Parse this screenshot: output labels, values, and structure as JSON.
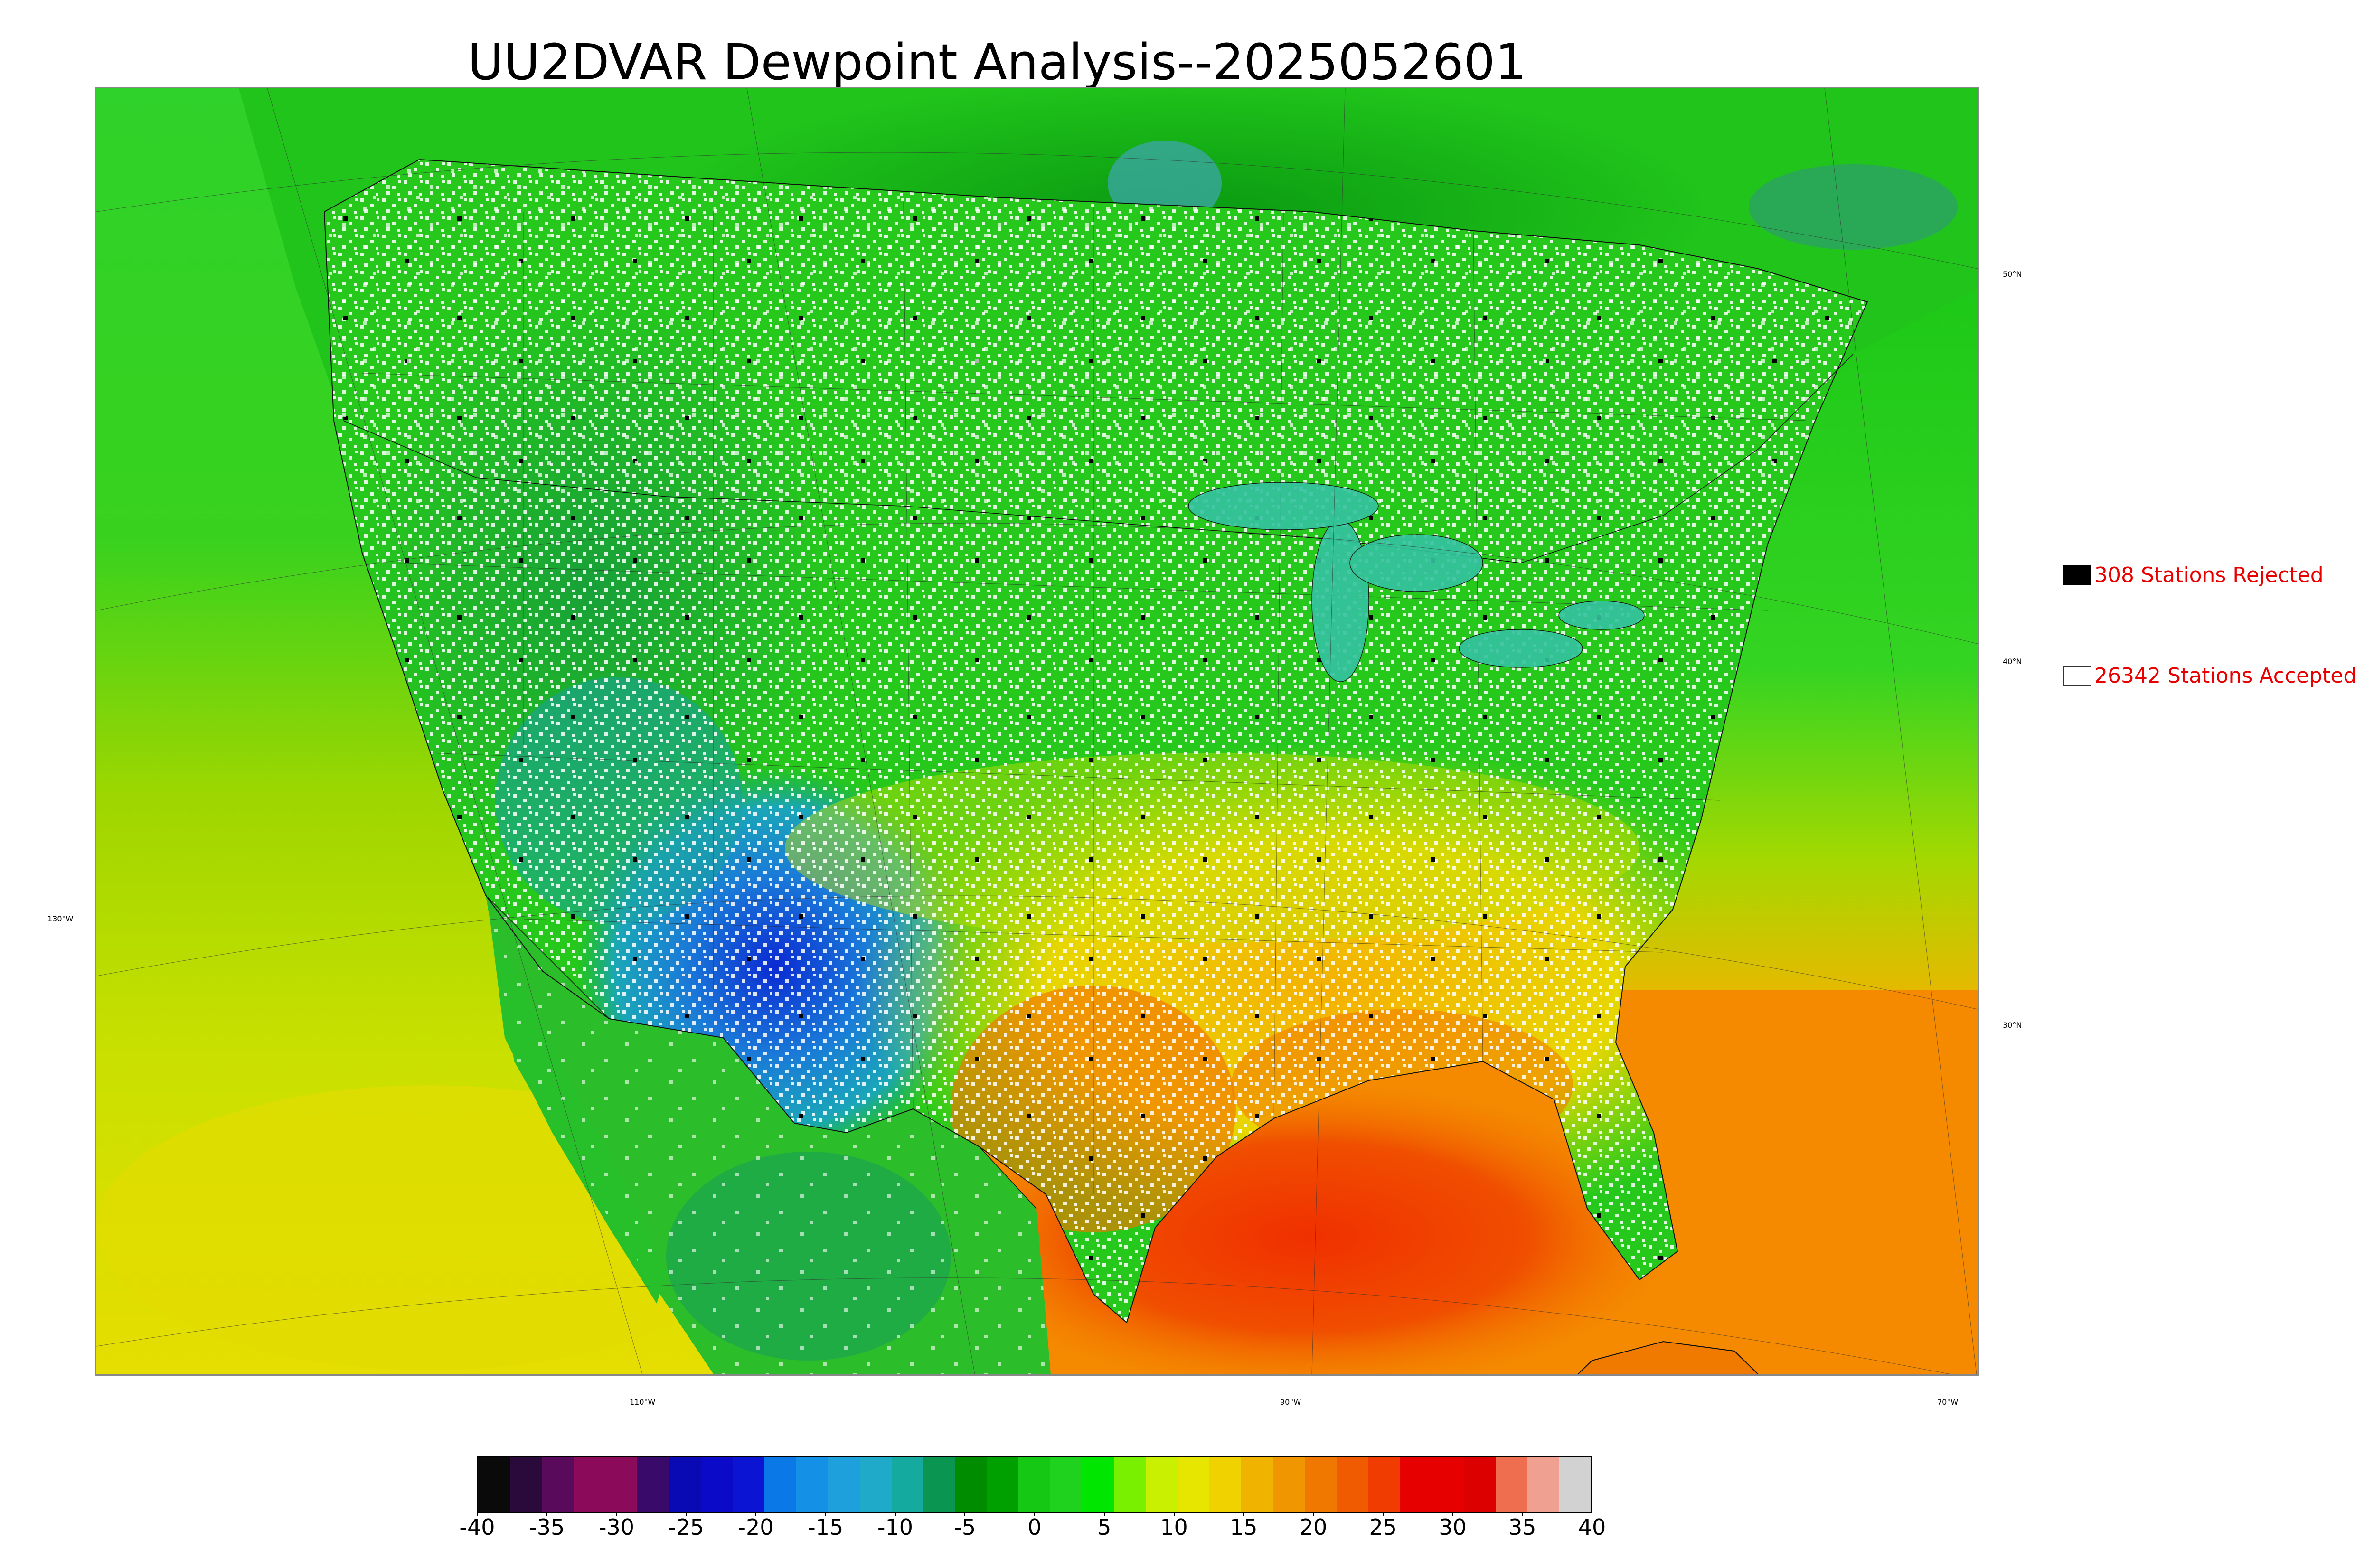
{
  "title": "UU2DVAR Dewpoint Analysis--2025052601",
  "legend": {
    "rejected": {
      "count_label": "308 Stations Rejected",
      "swatch_color": "#000000"
    },
    "accepted": {
      "count_label": "26342 Stations Accepted",
      "swatch_color": "#ffffff"
    }
  },
  "graticule": {
    "latitudes": [
      "50°N",
      "40°N",
      "30°N"
    ],
    "longitudes": [
      "130°W",
      "110°W",
      "90°W",
      "70°W"
    ]
  },
  "colorbar": {
    "ticks": [
      "-40",
      "-35",
      "-30",
      "-25",
      "-20",
      "-15",
      "-10",
      "-5",
      "0",
      "5",
      "10",
      "15",
      "20",
      "25",
      "30",
      "35",
      "40"
    ],
    "colors": [
      "#0a0a0a",
      "#2a0a3a",
      "#5a0a5a",
      "#8c0a5a",
      "#8c0a5a",
      "#3a0a6a",
      "#0a0ab4",
      "#0a0ac8",
      "#0a14d2",
      "#0a78e6",
      "#1490e6",
      "#1ea0dc",
      "#1eaac8",
      "#14aaa0",
      "#0a9650",
      "#008c00",
      "#00a000",
      "#14c814",
      "#1ed21e",
      "#00e600",
      "#78f000",
      "#c8f000",
      "#e6e600",
      "#f0d200",
      "#f0b400",
      "#f09600",
      "#f07800",
      "#f05a00",
      "#f03c00",
      "#e60000",
      "#e60000",
      "#dc0000",
      "#f06e50",
      "#f0a090",
      "#d2d2d2"
    ]
  },
  "colors": {
    "label_red": "#e80000",
    "ocean_west": "#9ed600",
    "ocean_gulf": "#f57f00"
  }
}
